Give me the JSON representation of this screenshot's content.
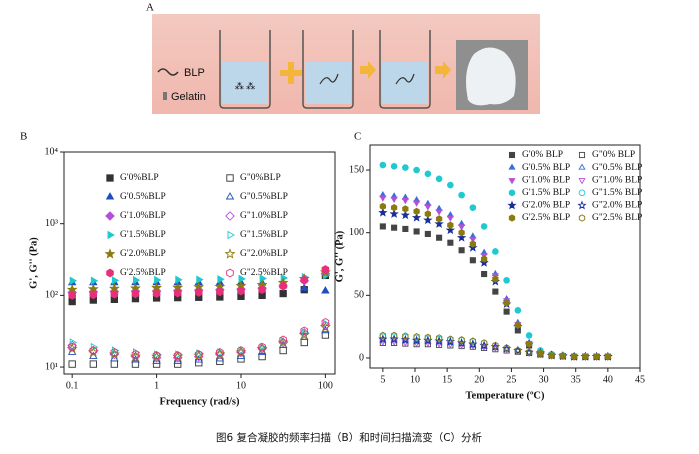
{
  "panel_a": {
    "label": "A",
    "legend": [
      "BLP",
      "Gelatin"
    ]
  },
  "caption": "图6 复合凝胶的频率扫描（B）和时间扫描流变（C）分析",
  "chart_data": [
    {
      "type": "scatter",
      "panel": "B",
      "xlabel": "Frequency (rad/s)",
      "ylabel": "G', G'' (Pa)",
      "xlog": true,
      "ylog": true,
      "xlim": [
        0.08,
        130
      ],
      "ylim": [
        8,
        10000
      ],
      "xticks": [
        0.1,
        1,
        10,
        100
      ],
      "yticks": [
        {
          "value": 10,
          "label": "10¹"
        },
        {
          "value": 100,
          "label": "10²"
        },
        {
          "value": 1000,
          "label": "10³"
        },
        {
          "value": 10000,
          "label": "10⁴"
        }
      ],
      "x": [
        0.1,
        0.178,
        0.316,
        0.562,
        1,
        1.78,
        3.16,
        5.62,
        10,
        17.8,
        31.6,
        56.2,
        100
      ],
      "series": [
        {
          "name": "G'0%BLP",
          "color": "#333333",
          "marker": "square",
          "filled": true,
          "values": [
            82,
            86,
            88,
            90,
            92,
            93,
            94,
            95,
            97,
            100,
            106,
            120,
            190
          ]
        },
        {
          "name": "G\"0%BLP",
          "color": "#333333",
          "marker": "square",
          "filled": false,
          "values": [
            11,
            11,
            11,
            11,
            11,
            11,
            11.5,
            12,
            13,
            14,
            17,
            22,
            28
          ]
        },
        {
          "name": "G'0.5%BLP",
          "color": "#1f4fbf",
          "marker": "triangle",
          "filled": true,
          "values": [
            150,
            150,
            150,
            150,
            150,
            150,
            150,
            150,
            150,
            148,
            140,
            125,
            115
          ]
        },
        {
          "name": "G\"0.5%BLP",
          "color": "#1f4fbf",
          "marker": "triangle",
          "filled": false,
          "values": [
            16,
            14,
            13,
            12.5,
            12,
            12,
            12.5,
            13,
            14,
            16,
            20,
            26,
            32
          ]
        },
        {
          "name": "G'1.0%BLP",
          "color": "#b44fdc",
          "marker": "diamond",
          "filled": true,
          "values": [
            110,
            112,
            113,
            114,
            115,
            116,
            118,
            120,
            122,
            126,
            135,
            160,
            200
          ]
        },
        {
          "name": "G\"1.0%BLP",
          "color": "#b44fdc",
          "marker": "diamond",
          "filled": false,
          "values": [
            20,
            17,
            15,
            14,
            13.5,
            13.5,
            14,
            15,
            16,
            18,
            22,
            30,
            38
          ]
        },
        {
          "name": "G'1.5%BLP",
          "color": "#1fc9cf",
          "marker": "triangle-right",
          "filled": true,
          "values": [
            160,
            160,
            162,
            163,
            164,
            165,
            166,
            168,
            170,
            172,
            175,
            180,
            190
          ]
        },
        {
          "name": "G\"1.5%BLP",
          "color": "#1fc9cf",
          "marker": "triangle-right",
          "filled": false,
          "values": [
            22,
            19,
            17,
            16,
            15,
            15,
            15.5,
            16,
            17,
            19,
            23,
            30,
            40
          ]
        },
        {
          "name": "G'2.0%BLP",
          "color": "#8a7a10",
          "marker": "star",
          "filled": true,
          "values": [
            120,
            122,
            124,
            125,
            127,
            128,
            130,
            132,
            135,
            140,
            150,
            170,
            210
          ]
        },
        {
          "name": "G\"2.0%BLP",
          "color": "#8a7a10",
          "marker": "star",
          "filled": false,
          "values": [
            18,
            16,
            15,
            14,
            14,
            14,
            14.5,
            15,
            16,
            18,
            22,
            28,
            36
          ]
        },
        {
          "name": "G'2.5%BLP",
          "color": "#e8307a",
          "marker": "hexagon",
          "filled": true,
          "values": [
            100,
            102,
            104,
            105,
            106,
            108,
            110,
            112,
            115,
            120,
            135,
            165,
            230
          ]
        },
        {
          "name": "G\"2.5%BLP",
          "color": "#e8307a",
          "marker": "hexagon",
          "filled": false,
          "values": [
            19,
            17,
            16,
            15,
            14.5,
            14.5,
            15,
            16,
            17,
            19,
            24,
            32,
            42
          ]
        }
      ]
    },
    {
      "type": "scatter",
      "panel": "C",
      "xlabel": "Temperature (ºC)",
      "ylabel": "G', G'' (Pa)",
      "xlim": [
        3,
        45
      ],
      "ylim": [
        -8,
        170
      ],
      "xticks": [
        5,
        10,
        15,
        20,
        25,
        30,
        35,
        40,
        45
      ],
      "yticks": [
        0,
        50,
        100,
        150
      ],
      "x": [
        5,
        6.75,
        8.5,
        10.25,
        12,
        13.75,
        15.5,
        17.25,
        19,
        20.75,
        22.5,
        24.25,
        26,
        27.75,
        29.5,
        31.25,
        33,
        34.75,
        36.5,
        38.25,
        40
      ],
      "series": [
        {
          "name": "G'0% BLP",
          "color": "#444444",
          "marker": "square",
          "filled": true,
          "values": [
            105,
            104,
            103,
            101,
            99,
            96,
            92,
            86,
            78,
            67,
            53,
            37,
            22,
            10,
            3,
            2,
            1.5,
            1,
            1,
            1,
            1
          ]
        },
        {
          "name": "G\"0% BLP",
          "color": "#444444",
          "marker": "square",
          "filled": false,
          "values": [
            12,
            12,
            11.5,
            11,
            11,
            10.5,
            10,
            9.5,
            9,
            8,
            7,
            6,
            5,
            4,
            3,
            2,
            1.5,
            1,
            1,
            1,
            1
          ]
        },
        {
          "name": "G'0.5% BLP",
          "color": "#3a6fd8",
          "marker": "triangle",
          "filled": true,
          "values": [
            130,
            129,
            128,
            126,
            123,
            119,
            114,
            107,
            97,
            84,
            67,
            47,
            28,
            12,
            4,
            2,
            1.5,
            1,
            1,
            1,
            1
          ]
        },
        {
          "name": "G\"0.5% BLP",
          "color": "#3a6fd8",
          "marker": "triangle",
          "filled": false,
          "values": [
            14,
            14,
            13.5,
            13,
            13,
            12.5,
            12,
            11,
            10,
            9,
            8,
            7,
            6,
            4.5,
            3,
            2,
            1.5,
            1,
            1,
            1,
            1
          ]
        },
        {
          "name": "G'1.0% BLP",
          "color": "#b44fdc",
          "marker": "triangle-down",
          "filled": true,
          "values": [
            128,
            127,
            126,
            124,
            121,
            117,
            112,
            105,
            95,
            82,
            66,
            46,
            27,
            12,
            4,
            2,
            1.5,
            1,
            1,
            1,
            1
          ]
        },
        {
          "name": "G\"1.0% BLP",
          "color": "#b44fdc",
          "marker": "triangle-down",
          "filled": false,
          "values": [
            13,
            13,
            12.5,
            12,
            12,
            11.5,
            11,
            10.5,
            10,
            9,
            8,
            7,
            5.5,
            4,
            3,
            2,
            1.5,
            1,
            1,
            1,
            1
          ]
        },
        {
          "name": "G'1.5% BLP",
          "color": "#1fc9cf",
          "marker": "circle",
          "filled": true,
          "values": [
            154,
            153,
            152,
            150,
            147,
            143,
            138,
            130,
            120,
            105,
            85,
            62,
            38,
            18,
            6,
            3,
            2,
            1.5,
            1,
            1,
            1
          ]
        },
        {
          "name": "G\"1.5% BLP",
          "color": "#1fc9cf",
          "marker": "circle",
          "filled": false,
          "values": [
            17,
            17,
            16.5,
            16,
            15.5,
            15,
            14.5,
            14,
            13,
            12,
            10,
            8,
            6,
            4.5,
            3,
            2,
            1.5,
            1,
            1,
            1,
            1
          ]
        },
        {
          "name": "G'2.0% BLP",
          "color": "#1a2f9a",
          "marker": "star",
          "filled": true,
          "values": [
            116,
            115,
            114,
            112,
            110,
            107,
            102,
            96,
            88,
            76,
            61,
            43,
            25,
            11,
            4,
            2,
            1.5,
            1,
            1,
            1,
            1
          ]
        },
        {
          "name": "G\"2.0% BLP",
          "color": "#1a2f9a",
          "marker": "star",
          "filled": false,
          "values": [
            15,
            15,
            14.5,
            14,
            14,
            13.5,
            13,
            12,
            11,
            10,
            9,
            7.5,
            6,
            4.5,
            3,
            2,
            1.5,
            1,
            1,
            1,
            1
          ]
        },
        {
          "name": "G'2.5% BLP",
          "color": "#8a7a10",
          "marker": "hexagon",
          "filled": true,
          "values": [
            121,
            120,
            119,
            117,
            115,
            111,
            106,
            100,
            91,
            79,
            63,
            44,
            26,
            11,
            4,
            2,
            1.5,
            1,
            1,
            1,
            1
          ]
        },
        {
          "name": "G\"2.5% BLP",
          "color": "#8a7a10",
          "marker": "hexagon",
          "filled": false,
          "values": [
            18,
            18,
            17.5,
            17,
            16.5,
            16,
            15,
            14.5,
            13.5,
            12,
            10,
            8,
            6,
            4.5,
            3,
            2,
            1.5,
            1,
            1,
            1,
            1
          ]
        }
      ]
    }
  ]
}
